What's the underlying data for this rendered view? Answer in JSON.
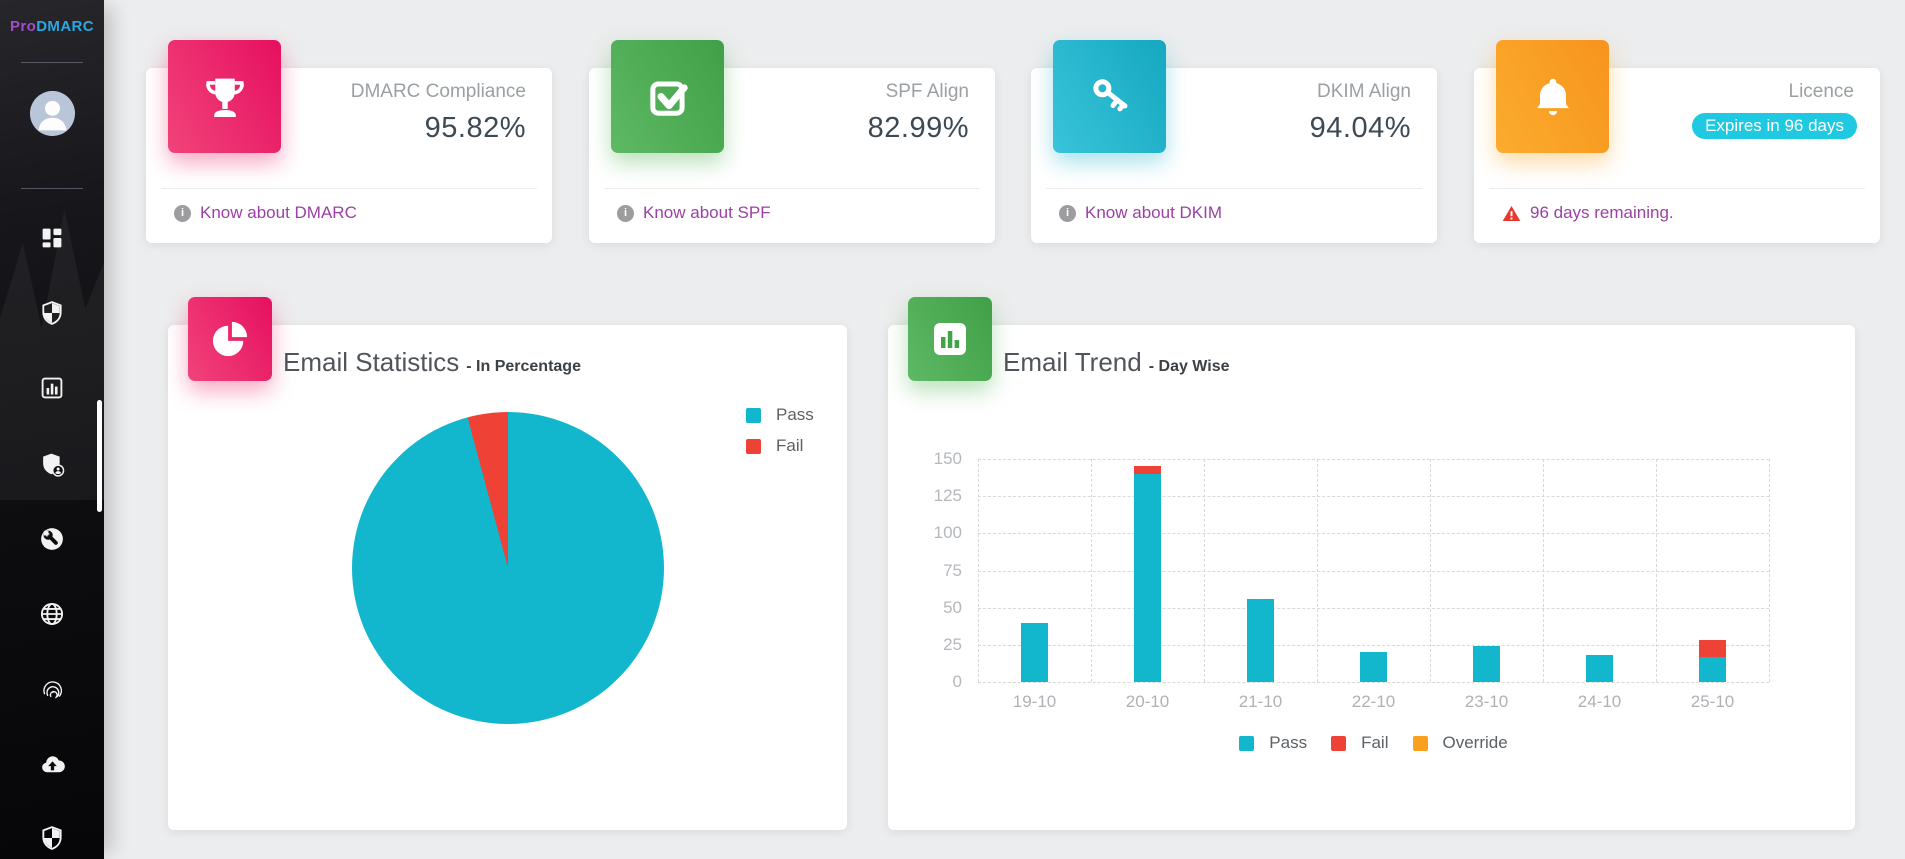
{
  "colors": {
    "pass_cyan": "#12b6cd",
    "fail_red": "#ef4237",
    "override_orange": "#f9a11d",
    "accent_pink": "#e91663",
    "accent_green": "#4caf50",
    "accent_teal": "#26b6cf",
    "accent_orange": "#f9a21c",
    "link_purple": "#9b41a5",
    "badge_cyan": "#1fc9e2"
  },
  "sidebar": {
    "logo_pro": "Pro",
    "logo_dmarc": "DMARC",
    "nav_icons": [
      "dashboard-grid-icon",
      "shield-icon",
      "bar-chart-icon",
      "shield-user-icon",
      "wrench-icon",
      "globe-icon",
      "fingerprint-icon",
      "cloud-upload-icon",
      "shield-check-icon"
    ]
  },
  "stat_cards": [
    {
      "label": "DMARC Compliance",
      "value": "95.82%",
      "link": "Know about DMARC",
      "icon": "trophy-icon"
    },
    {
      "label": "SPF Align",
      "value": "82.99%",
      "link": "Know about SPF",
      "icon": "check-square-icon"
    },
    {
      "label": "DKIM Align",
      "value": "94.04%",
      "link": "Know about DKIM",
      "icon": "key-icon"
    },
    {
      "label": "Licence",
      "badge": "Expires in 96 days",
      "warning": "96 days remaining.",
      "icon": "bell-icon"
    }
  ],
  "email_statistics": {
    "title": "Email Statistics",
    "subtitle": "- In Percentage"
  },
  "email_trend": {
    "title": "Email Trend",
    "subtitle": "- Day Wise"
  },
  "chart_data": [
    {
      "type": "pie",
      "title": "Email Statistics - In Percentage",
      "labels": [
        "Pass",
        "Fail"
      ],
      "values": [
        95.82,
        4.18
      ],
      "colors": [
        "#12b6cd",
        "#ef4237"
      ],
      "legend_position": "top-right",
      "note": "fail slice sits just left of 12 o'clock"
    },
    {
      "type": "bar",
      "title": "Email Trend - Day Wise",
      "stacked": true,
      "categories": [
        "19-10",
        "20-10",
        "21-10",
        "22-10",
        "23-10",
        "24-10",
        "25-10"
      ],
      "series": [
        {
          "name": "Pass",
          "color": "#12b6cd",
          "values": [
            40,
            140,
            56,
            20,
            24,
            18,
            17
          ]
        },
        {
          "name": "Fail",
          "color": "#ef4237",
          "values": [
            0,
            5,
            0,
            0,
            0,
            0,
            11
          ]
        },
        {
          "name": "Override",
          "color": "#f9a11d",
          "values": [
            0,
            0,
            0,
            0,
            0,
            0,
            0
          ]
        }
      ],
      "ylim": [
        0,
        150
      ],
      "yticks": [
        0,
        25,
        50,
        75,
        100,
        125,
        150
      ],
      "grid": "dashed",
      "legend_position": "bottom"
    }
  ]
}
